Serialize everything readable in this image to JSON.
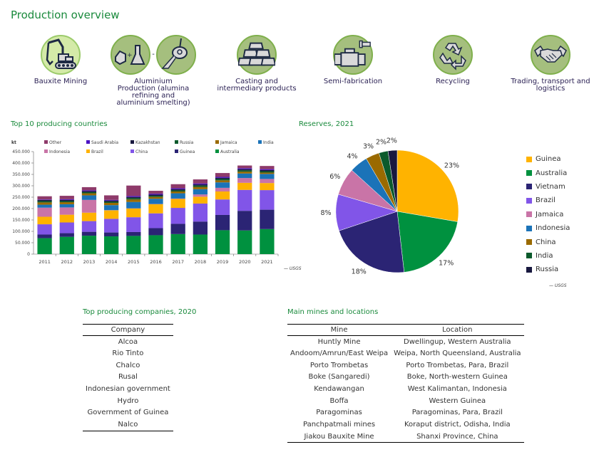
{
  "page": {
    "title": "Production overview"
  },
  "steps": [
    {
      "label": "Bauxite Mining",
      "icon": "excavator-icon"
    },
    {
      "label": "Aluminium Production (alumina refining and aluminium smelting)",
      "icon": "refining-smelting-icon"
    },
    {
      "label": "Casting and intermediary products",
      "icon": "ingots-icon"
    },
    {
      "label": "Semi-fabrication",
      "icon": "pipe-fitting-icon"
    },
    {
      "label": "Recycling",
      "icon": "recycle-icon"
    },
    {
      "label": "Trading, transport and logistics",
      "icon": "handshake-icon"
    }
  ],
  "production_chart": {
    "title": "Top 10 producing countries",
    "source": "— USGS"
  },
  "reserves_chart": {
    "title": "Reserves, 2021",
    "source": "— USGS"
  },
  "companies": {
    "title": "Top producing companies, 2020",
    "header": "Company",
    "rows": [
      "Alcoa",
      "Rio Tinto",
      "Chalco",
      "Rusal",
      "Indonesian government",
      "Hydro",
      "Government of Guinea",
      "Nalco"
    ]
  },
  "mines": {
    "title": "Main mines and locations",
    "headers": [
      "Mine",
      "Location"
    ],
    "rows": [
      [
        "Huntly Mine",
        "Dwellingup, Western Australia"
      ],
      [
        "Andoom/Amrun/East Weipa",
        "Weipa, North Queensland, Australia"
      ],
      [
        "Porto Trombetas",
        "Porto Trombetas, Para, Brazil"
      ],
      [
        "Boke (Sangaredi)",
        "Boke, North-western Guinea"
      ],
      [
        "Kendawangan",
        "West Kalimantan, Indonesia"
      ],
      [
        "Boffa",
        "Western Guinea"
      ],
      [
        "Paragominas",
        "Paragominas, Para, Brazil"
      ],
      [
        "Panchpatmali mines",
        "Koraput district, Odisha, India"
      ],
      [
        "Jiakou Bauxite Mine",
        "Shanxi Province, China"
      ]
    ]
  },
  "chart_data": [
    {
      "type": "bar",
      "stacked": true,
      "title": "Top 10 producing countries",
      "ylabel": "kt",
      "xlabel": "",
      "ylim": [
        0,
        450000
      ],
      "yticks": [
        "0",
        "50.000",
        "100.000",
        "150.000",
        "200.000",
        "250.000",
        "300.000",
        "350.000",
        "400.000",
        "450.000"
      ],
      "categories": [
        "2011",
        "2012",
        "2013",
        "2014",
        "2015",
        "2016",
        "2017",
        "2018",
        "2019",
        "2020",
        "2021"
      ],
      "legend_position": "top",
      "legend_order": [
        "Other",
        "Saudi Arabia",
        "Kazakhstan",
        "Russia",
        "Jamaica",
        "India",
        "Indonesia",
        "Brazil",
        "China",
        "Guinea",
        "Australia"
      ],
      "series": [
        {
          "name": "Australia",
          "color": "#00913f",
          "values": [
            70000,
            76000,
            81000,
            78000,
            80000,
            83000,
            88000,
            86000,
            105000,
            104000,
            110000
          ]
        },
        {
          "name": "Guinea",
          "color": "#2b2474",
          "values": [
            16000,
            16000,
            17000,
            17000,
            17000,
            31000,
            45000,
            57000,
            67000,
            86000,
            85000
          ]
        },
        {
          "name": "China",
          "color": "#8155e8",
          "values": [
            45000,
            47000,
            47000,
            60000,
            65000,
            65000,
            70000,
            79000,
            68000,
            92000,
            86000
          ]
        },
        {
          "name": "Brazil",
          "color": "#ffb300",
          "values": [
            33000,
            34000,
            37000,
            37000,
            38000,
            40000,
            39000,
            30000,
            35000,
            31000,
            31000
          ]
        },
        {
          "name": "Indonesia",
          "color": "#c974a7",
          "values": [
            40000,
            32000,
            56000,
            1000,
            1000,
            1000,
            2000,
            10000,
            16000,
            21000,
            18000
          ]
        },
        {
          "name": "India",
          "color": "#1b73b8",
          "values": [
            13000,
            14000,
            20000,
            22000,
            28000,
            23000,
            23000,
            23000,
            24000,
            20000,
            22000
          ]
        },
        {
          "name": "Jamaica",
          "color": "#9a6a00",
          "values": [
            10000,
            9000,
            9000,
            10000,
            11000,
            8000,
            8000,
            10000,
            9000,
            8000,
            6000
          ]
        },
        {
          "name": "Russia",
          "color": "#0b5a2c",
          "values": [
            6000,
            5000,
            5000,
            5000,
            6000,
            5000,
            5000,
            6000,
            6000,
            6000,
            6000
          ]
        },
        {
          "name": "Kazakhstan",
          "color": "#18183f",
          "values": [
            5000,
            5000,
            5000,
            5000,
            5000,
            5000,
            5000,
            5000,
            5000,
            5000,
            5000
          ]
        },
        {
          "name": "Saudi Arabia",
          "color": "#4a13c4",
          "values": [
            2000,
            3000,
            3000,
            3000,
            4000,
            4000,
            4000,
            4000,
            4000,
            4000,
            4000
          ]
        },
        {
          "name": "Other",
          "color": "#8e3a6a",
          "values": [
            14000,
            15000,
            14000,
            20000,
            46000,
            13000,
            18000,
            18000,
            17000,
            12000,
            14000
          ]
        }
      ]
    },
    {
      "type": "pie",
      "title": "Reserves, 2021",
      "legend_position": "right",
      "slices": [
        {
          "label": "Guinea",
          "value": 23,
          "color": "#ffb300"
        },
        {
          "label": "Australia",
          "value": 17,
          "color": "#00913f"
        },
        {
          "label": "Vietnam",
          "value": 18,
          "color": "#2b2474"
        },
        {
          "label": "Brazil",
          "value": 8,
          "color": "#8155e8"
        },
        {
          "label": "Jamaica",
          "value": 6,
          "color": "#c974a7"
        },
        {
          "label": "Indonesia",
          "value": 4,
          "color": "#1b73b8"
        },
        {
          "label": "China",
          "value": 3,
          "color": "#9a6a00"
        },
        {
          "label": "India",
          "value": 2,
          "color": "#0b5a2c"
        },
        {
          "label": "Russia",
          "value": 2,
          "color": "#18183f"
        }
      ]
    }
  ]
}
